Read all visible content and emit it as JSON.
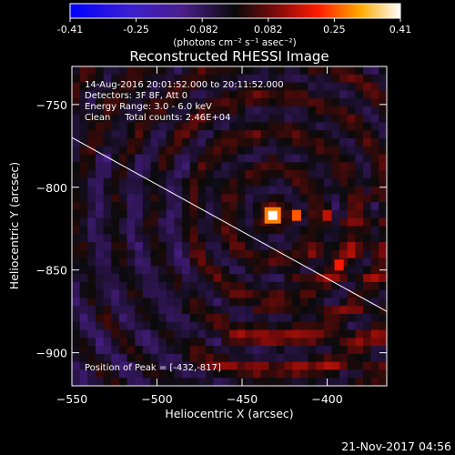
{
  "colorbar": {
    "ticks": [
      "-0.41",
      "-0.25",
      "-0.082",
      "0.082",
      "0.25",
      "0.41"
    ],
    "units": "(photons cm⁻² s⁻¹ asec⁻²)"
  },
  "chart_data": {
    "type": "heatmap",
    "title": "Reconstructed RHESSI Image",
    "xlabel": "Heliocentric X (arcsec)",
    "ylabel": "Heliocentric Y (arcsec)",
    "xlim": [
      -550,
      -365
    ],
    "ylim": [
      -920,
      -727
    ],
    "xticks": [
      -550,
      -500,
      -450,
      -400
    ],
    "yticks": [
      -750,
      -800,
      -850,
      -900
    ],
    "colorbar_range": [
      -0.41,
      0.41
    ],
    "limb_line": [
      [
        -550,
        -770
      ],
      [
        -365,
        -875
      ]
    ],
    "peak": {
      "x": -432,
      "y": -817,
      "value": 0.41
    },
    "secondary_sources": [
      {
        "x": -418,
        "y": -817,
        "value": 0.25
      },
      {
        "x": -393,
        "y": -847,
        "value": 0.2
      },
      {
        "x": -400,
        "y": -817,
        "value": 0.15
      }
    ]
  },
  "annotations": {
    "time": "14-Aug-2016 20:01:52.000 to 20:11:52.000",
    "detectors": "Detectors: 3F 8F, Att 0",
    "energy": "Energy Range: 3.0 - 6.0 keV",
    "clean": "Clean     Total counts: 2.46E+04",
    "peak_text": "Position of Peak = [-432,-817]"
  },
  "footer_date": "21-Nov-2017 04:56"
}
